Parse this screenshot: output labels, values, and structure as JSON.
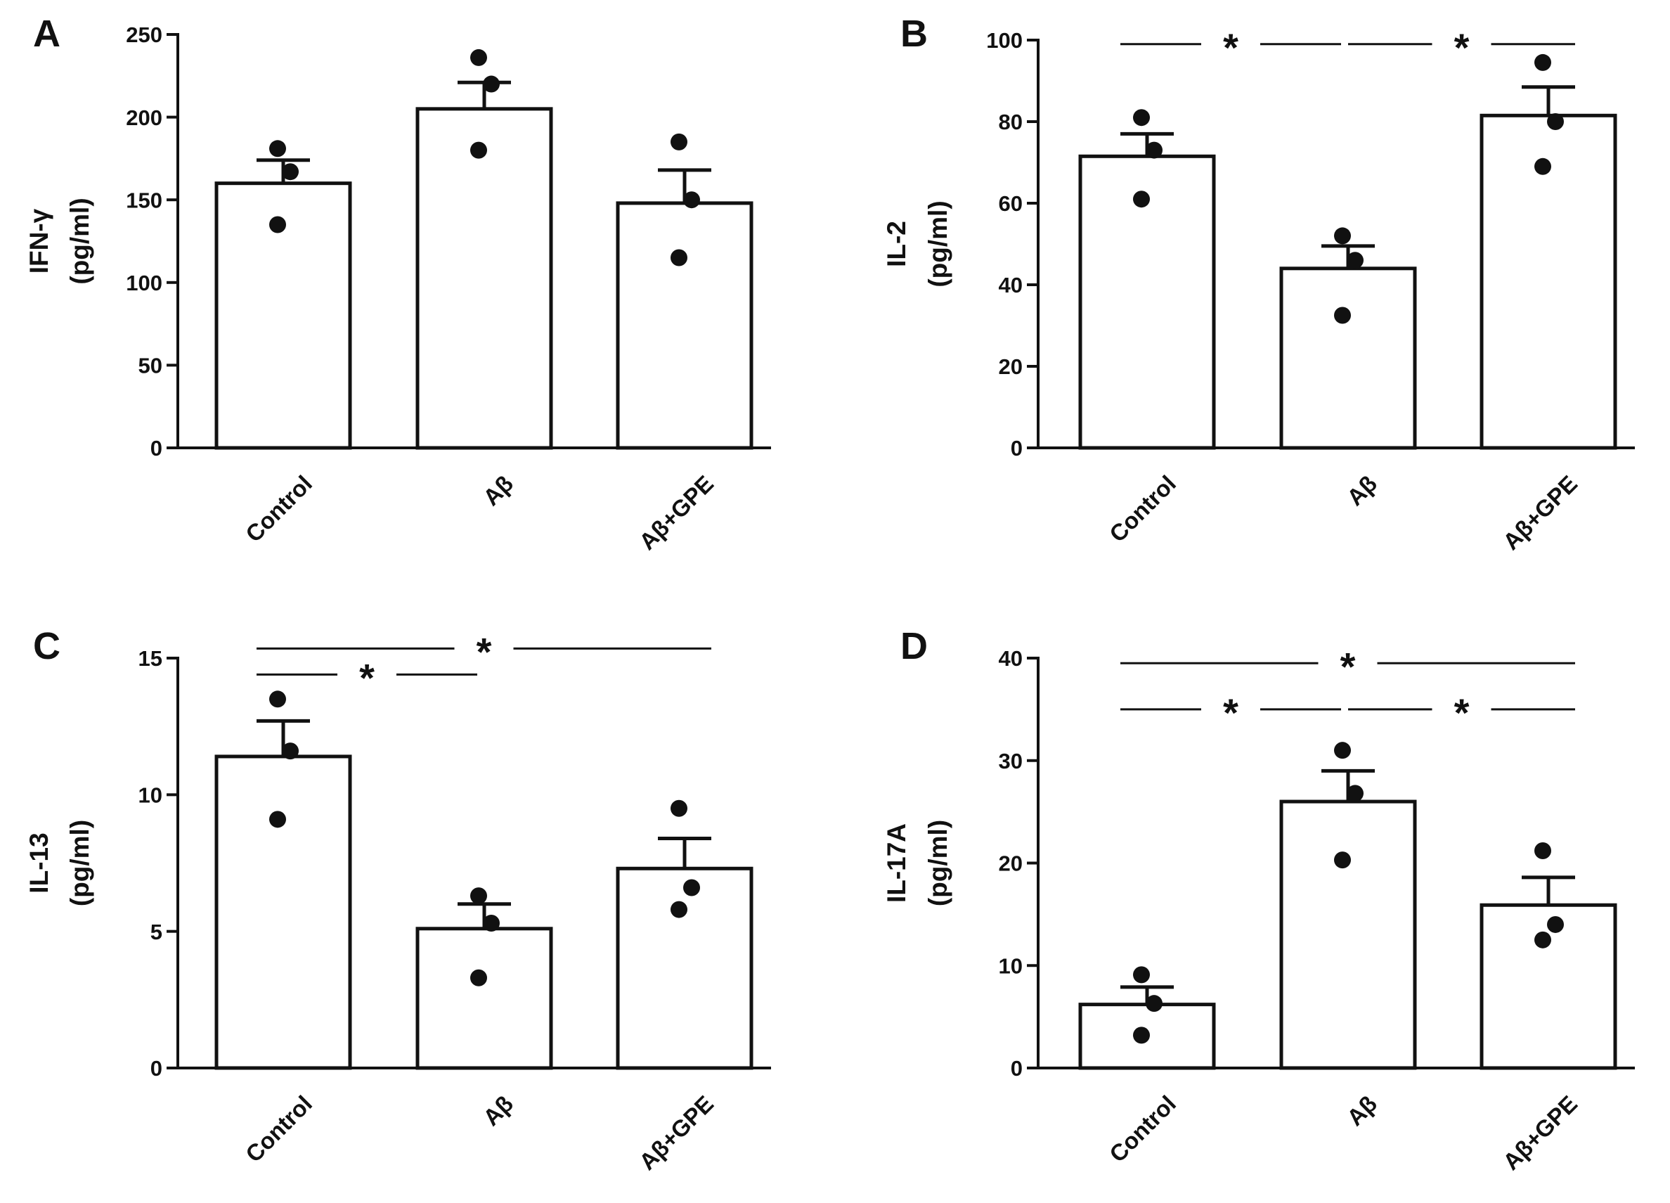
{
  "chart_data": [
    {
      "panel": "A",
      "type": "bar",
      "categories": [
        "Control",
        "Aβ",
        "Aβ+GPE"
      ],
      "values": [
        160,
        205,
        148
      ],
      "sem": [
        14,
        16,
        20
      ],
      "points": [
        [
          181,
          167,
          135
        ],
        [
          236,
          220,
          180
        ],
        [
          185,
          150,
          115
        ]
      ],
      "ylabel_line1": "IFN-γ",
      "ylabel_line2": "(pg/ml)",
      "ylim": [
        0,
        250
      ],
      "yticks": [
        0,
        50,
        100,
        150,
        200,
        250
      ],
      "significance": []
    },
    {
      "panel": "B",
      "type": "bar",
      "categories": [
        "Control",
        "Aβ",
        "Aβ+GPE"
      ],
      "values": [
        71.5,
        44,
        81.5
      ],
      "sem": [
        5.5,
        5.5,
        7
      ],
      "points": [
        [
          81,
          73,
          61
        ],
        [
          52,
          46,
          32.5
        ],
        [
          94.5,
          80,
          69
        ]
      ],
      "ylabel_line1": "IL-2",
      "ylabel_line2": "(pg/ml)",
      "ylim": [
        0,
        100
      ],
      "yticks": [
        0,
        20,
        40,
        60,
        80,
        100
      ],
      "significance": [
        {
          "from": 0,
          "to": 1,
          "level": 99,
          "label": "*"
        },
        {
          "from": 1,
          "to": 2,
          "level": 99,
          "label": "*"
        }
      ]
    },
    {
      "panel": "C",
      "type": "bar",
      "categories": [
        "Control",
        "Aβ",
        "Aβ+GPE"
      ],
      "values": [
        11.4,
        5.1,
        7.3
      ],
      "sem": [
        1.3,
        0.9,
        1.1
      ],
      "points": [
        [
          13.5,
          11.6,
          9.1
        ],
        [
          6.3,
          5.3,
          3.3
        ],
        [
          9.5,
          6.6,
          5.8
        ]
      ],
      "ylabel_line1": "IL-13",
      "ylabel_line2": "(pg/ml)",
      "ylim": [
        0,
        15
      ],
      "yticks": [
        0,
        5,
        10,
        15
      ],
      "significance": [
        {
          "from": 0,
          "to": 2,
          "level": 15.35,
          "label": "*"
        },
        {
          "from": 0,
          "to": 1,
          "level": 14.4,
          "label": "*"
        }
      ]
    },
    {
      "panel": "D",
      "type": "bar",
      "categories": [
        "Control",
        "Aβ",
        "Aβ+GPE"
      ],
      "values": [
        6.2,
        26,
        15.9
      ],
      "sem": [
        1.7,
        3,
        2.7
      ],
      "points": [
        [
          9.1,
          6.3,
          3.2
        ],
        [
          31,
          26.8,
          20.3
        ],
        [
          21.2,
          14,
          12.5
        ]
      ],
      "ylabel_line1": "IL-17A",
      "ylabel_line2": "(pg/ml)",
      "ylim": [
        0,
        40
      ],
      "yticks": [
        0,
        10,
        20,
        30,
        40
      ],
      "significance": [
        {
          "from": 0,
          "to": 2,
          "level": 39.5,
          "label": "*"
        },
        {
          "from": 0,
          "to": 1,
          "level": 35,
          "label": "*"
        },
        {
          "from": 1,
          "to": 2,
          "level": 35,
          "label": "*"
        }
      ]
    }
  ]
}
